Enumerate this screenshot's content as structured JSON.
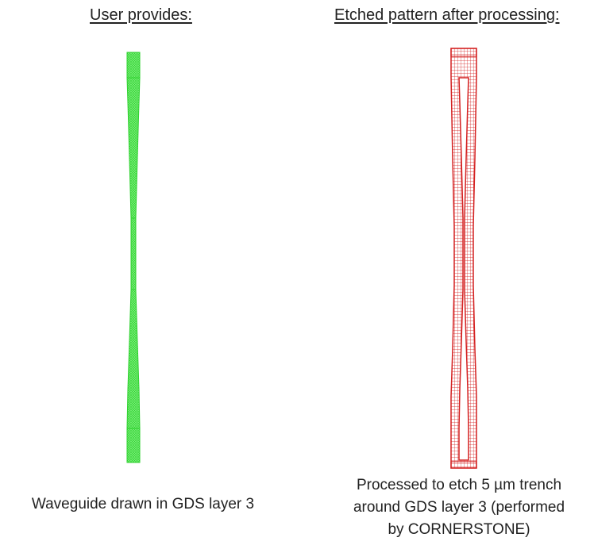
{
  "left": {
    "heading": "User provides:",
    "caption": "Waveguide drawn in GDS layer 3",
    "colors": {
      "fill": "#7ef07e",
      "stroke": "#2fd12f"
    }
  },
  "right": {
    "heading": "Etched pattern after processing:",
    "caption_lines": [
      "Processed to etch 5 µm trench",
      "around GDS layer 3 (performed",
      "by CORNERSTONE)"
    ],
    "colors": {
      "stroke": "#d42020",
      "fill": "#f3b9b9"
    }
  }
}
